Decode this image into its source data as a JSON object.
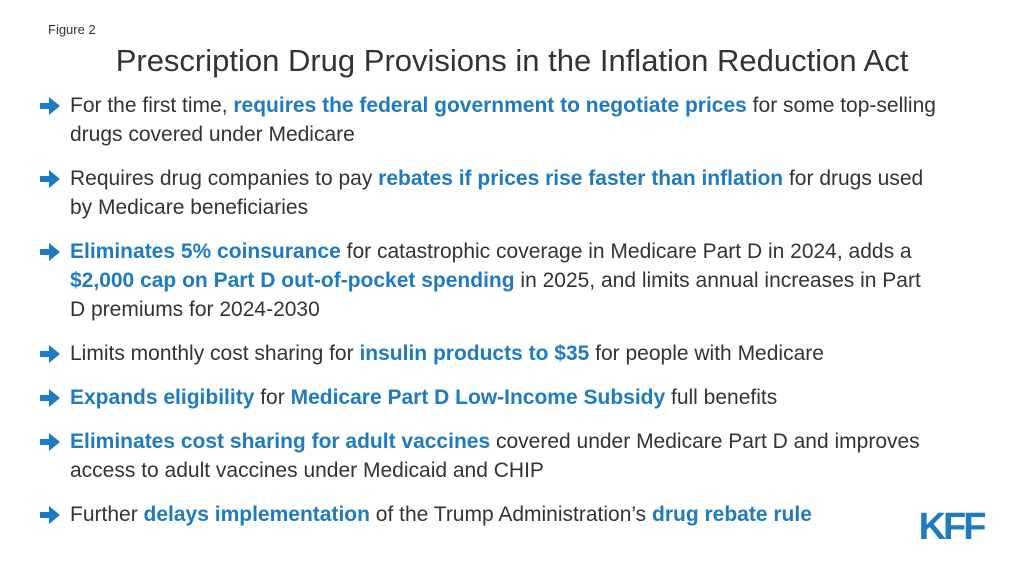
{
  "figure_label": "Figure 2",
  "title": "Prescription Drug Provisions in the Inflation Reduction Act",
  "colors": {
    "text": "#333333",
    "highlight": "#1f7bc0",
    "arrow": "#1f7bc0",
    "logo": "#1f7bc0"
  },
  "icons": {
    "bullet": "arrow-right-icon",
    "logo": "kff-logo"
  },
  "logo_text": "KFF",
  "bullets": [
    {
      "segments": [
        {
          "text": "For the first time, ",
          "highlight": false
        },
        {
          "text": "requires the federal government to negotiate prices",
          "highlight": true
        },
        {
          "text": " for some top-selling drugs covered under Medicare",
          "highlight": false
        }
      ]
    },
    {
      "segments": [
        {
          "text": "Requires drug companies to pay ",
          "highlight": false
        },
        {
          "text": "rebates if prices rise faster than inflation",
          "highlight": true
        },
        {
          "text": " for drugs used by Medicare beneficiaries",
          "highlight": false
        }
      ]
    },
    {
      "segments": [
        {
          "text": "Eliminates 5% coinsurance",
          "highlight": true
        },
        {
          "text": " for catastrophic coverage in Medicare Part D in 2024, adds a ",
          "highlight": false
        },
        {
          "text": "$2,000 cap on Part D out-of-pocket spending",
          "highlight": true
        },
        {
          "text": " in 2025, and limits annual increases in Part D premiums for 2024-2030",
          "highlight": false
        }
      ]
    },
    {
      "segments": [
        {
          "text": "Limits monthly cost sharing for ",
          "highlight": false
        },
        {
          "text": "insulin products to $35",
          "highlight": true
        },
        {
          "text": " for people with Medicare",
          "highlight": false
        }
      ]
    },
    {
      "segments": [
        {
          "text": "Expands eligibility",
          "highlight": true
        },
        {
          "text": " for ",
          "highlight": false
        },
        {
          "text": "Medicare Part D Low-Income Subsidy",
          "highlight": true
        },
        {
          "text": " full benefits",
          "highlight": false
        }
      ]
    },
    {
      "segments": [
        {
          "text": "Eliminates cost sharing for adult vaccines",
          "highlight": true
        },
        {
          "text": " covered under Medicare Part D and improves access to adult vaccines under Medicaid and CHIP",
          "highlight": false
        }
      ]
    },
    {
      "segments": [
        {
          "text": "Further ",
          "highlight": false
        },
        {
          "text": "delays implementation",
          "highlight": true
        },
        {
          "text": " of the Trump Administration’s ",
          "highlight": false
        },
        {
          "text": "drug rebate rule",
          "highlight": true
        }
      ]
    }
  ]
}
